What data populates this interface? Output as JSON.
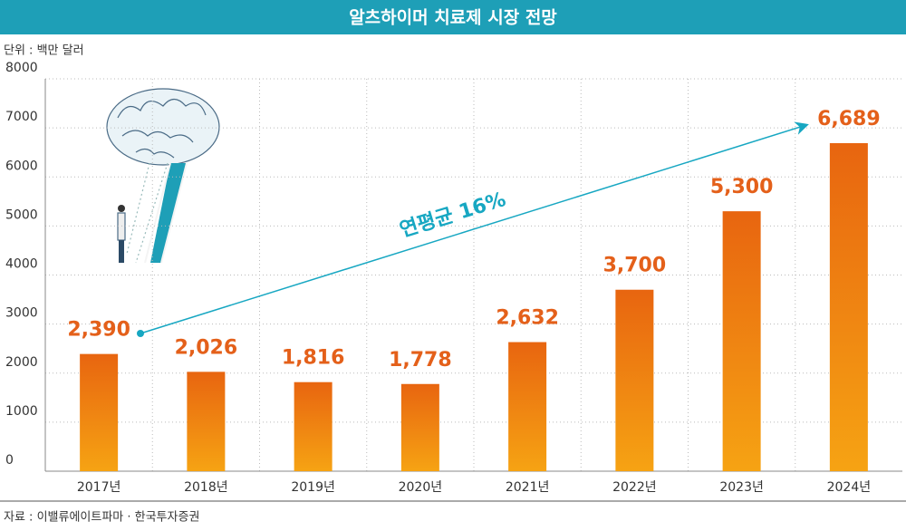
{
  "chart_data": {
    "type": "bar",
    "title": "알츠하이머 치료제 시장 전망",
    "subtitle": "단위 : 백만 달러",
    "source": "자료 : 이밸류에이트파마 · 한국투자증권",
    "annotation": "연평균 16%",
    "categories": [
      "2017년",
      "2018년",
      "2019년",
      "2020년",
      "2021년",
      "2022년",
      "2023년",
      "2024년"
    ],
    "values": [
      2390,
      2026,
      1816,
      1778,
      2632,
      3700,
      5300,
      6689
    ],
    "value_labels": [
      "2,390",
      "2,026",
      "1,816",
      "1,778",
      "2,632",
      "3,700",
      "5,300",
      "6,689"
    ],
    "color": "#ef8a12",
    "ylim": [
      0,
      8000
    ],
    "yticks": [
      0,
      1000,
      2000,
      3000,
      4000,
      5000,
      6000,
      7000,
      8000
    ],
    "grid": true
  }
}
